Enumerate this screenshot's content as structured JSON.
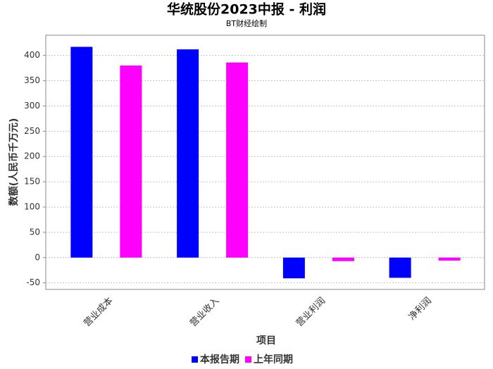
{
  "chart_data": {
    "type": "bar",
    "title": "华统股份2023中报 - 利润",
    "subtitle": "BT财经绘制",
    "x_label": "项目",
    "y_label": "数额(人民币千万元)",
    "categories": [
      "营业成本",
      "营业收入",
      "营业利润",
      "净利润"
    ],
    "series": [
      {
        "name": "本报告期",
        "color": "#0000ff",
        "values": [
          417,
          412,
          -41,
          -40
        ]
      },
      {
        "name": "上年同期",
        "color": "#ff00ff",
        "values": [
          380,
          386,
          -7,
          -6
        ]
      }
    ],
    "ylim": [
      -63,
      440
    ],
    "yticks": [
      -50,
      0,
      50,
      100,
      150,
      200,
      250,
      300,
      350,
      400
    ],
    "grid": true
  }
}
